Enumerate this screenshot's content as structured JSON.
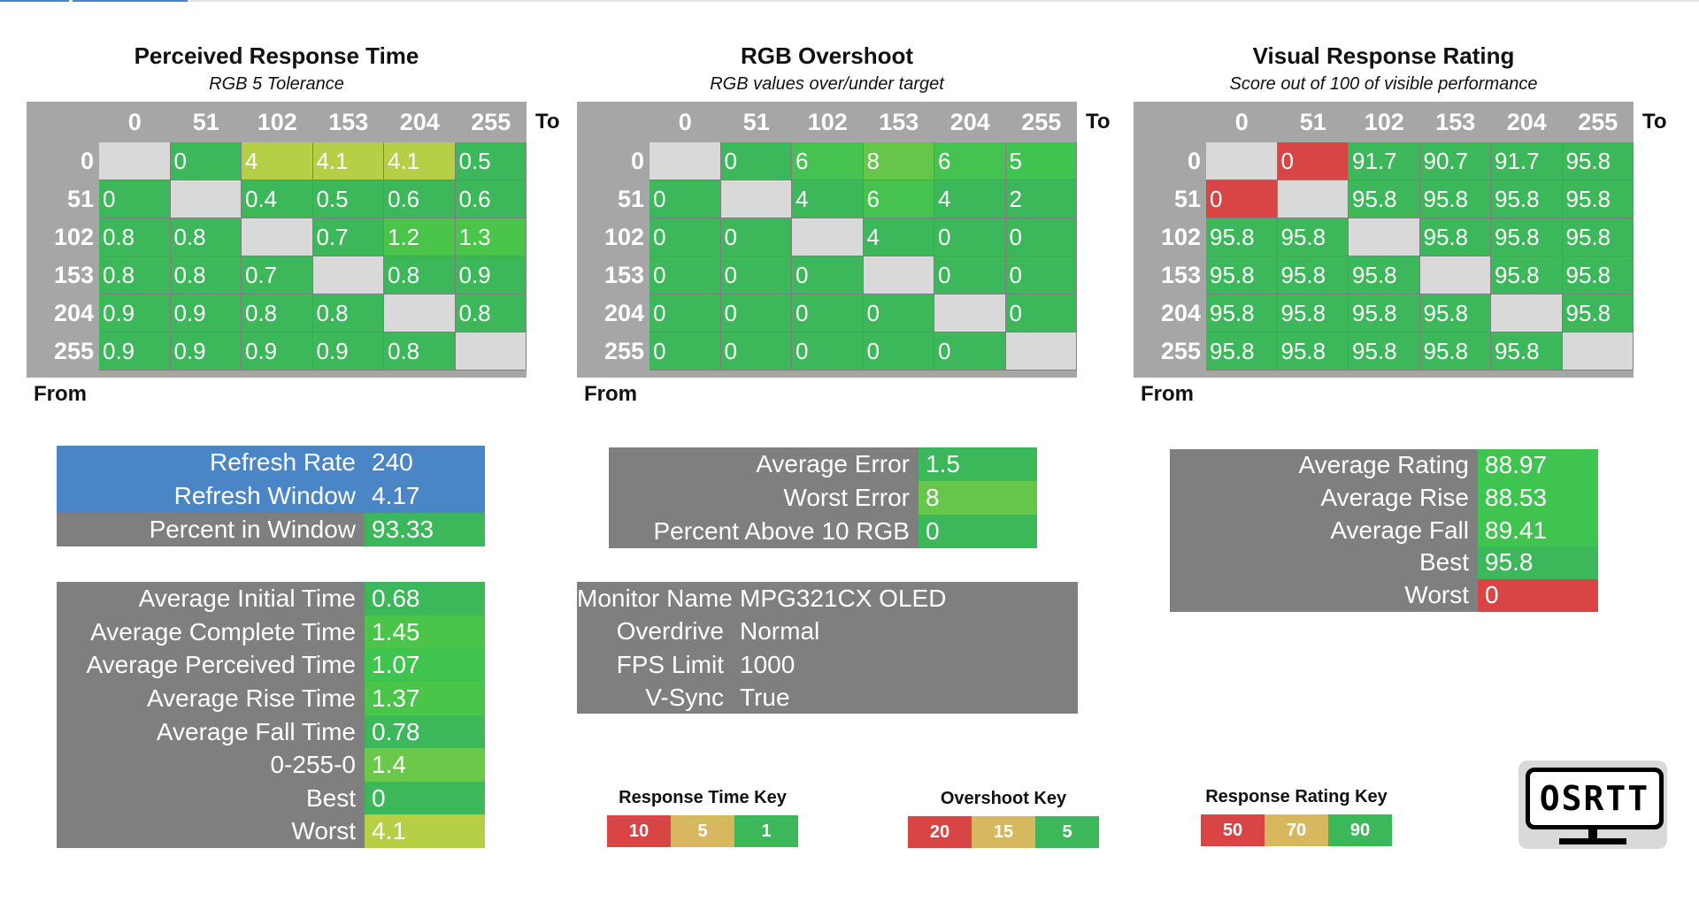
{
  "colors": {
    "green": "#3cb85a",
    "header_gray": "#a6a6a6",
    "diag_gray": "#d9d9d9",
    "stat_gray": "#7f7f7f",
    "blue": "#4a86c5",
    "red": "#d94444",
    "tan": "#d8b85f",
    "yellow_green": "#b5cf47"
  },
  "matrices": [
    {
      "title": "Perceived Response Time",
      "subtitle": "RGB 5 Tolerance",
      "to_label": "To",
      "from_label": "From",
      "columns": [
        "0",
        "51",
        "102",
        "153",
        "204",
        "255"
      ],
      "rows": [
        {
          "label": "0",
          "cells": [
            "",
            "0",
            "4",
            "4.1",
            "4.1",
            "0.5"
          ]
        },
        {
          "label": "51",
          "cells": [
            "0",
            "",
            "0.4",
            "0.5",
            "0.6",
            "0.6"
          ]
        },
        {
          "label": "102",
          "cells": [
            "0.8",
            "0.8",
            "",
            "0.7",
            "1.2",
            "1.3"
          ]
        },
        {
          "label": "153",
          "cells": [
            "0.8",
            "0.8",
            "0.7",
            "",
            "0.8",
            "0.9"
          ]
        },
        {
          "label": "204",
          "cells": [
            "0.9",
            "0.9",
            "0.8",
            "0.8",
            "",
            "0.8"
          ]
        },
        {
          "label": "255",
          "cells": [
            "0.9",
            "0.9",
            "0.9",
            "0.9",
            "0.8",
            ""
          ]
        }
      ],
      "cell_colors": [
        [
          "#d9d9d9",
          "#3cb85a",
          "#b5cf47",
          "#b5cf47",
          "#b5cf47",
          "#3cb85a"
        ],
        [
          "#3cb85a",
          "#d9d9d9",
          "#3cb85a",
          "#3cb85a",
          "#3cb85a",
          "#3cb85a"
        ],
        [
          "#3cb85a",
          "#3cb85a",
          "#d9d9d9",
          "#3cb85a",
          "#4ac54a",
          "#4ac54a"
        ],
        [
          "#3cb85a",
          "#3cb85a",
          "#3cb85a",
          "#d9d9d9",
          "#3cb85a",
          "#3cb85a"
        ],
        [
          "#3cb85a",
          "#3cb85a",
          "#3cb85a",
          "#3cb85a",
          "#d9d9d9",
          "#3cb85a"
        ],
        [
          "#3cb85a",
          "#3cb85a",
          "#3cb85a",
          "#3cb85a",
          "#3cb85a",
          "#d9d9d9"
        ]
      ]
    },
    {
      "title": "RGB Overshoot",
      "subtitle": "RGB values over/under target",
      "to_label": "To",
      "from_label": "From",
      "columns": [
        "0",
        "51",
        "102",
        "153",
        "204",
        "255"
      ],
      "rows": [
        {
          "label": "0",
          "cells": [
            "",
            "0",
            "6",
            "8",
            "6",
            "5"
          ]
        },
        {
          "label": "51",
          "cells": [
            "0",
            "",
            "4",
            "6",
            "4",
            "2"
          ]
        },
        {
          "label": "102",
          "cells": [
            "0",
            "0",
            "",
            "4",
            "0",
            "0"
          ]
        },
        {
          "label": "153",
          "cells": [
            "0",
            "0",
            "0",
            "",
            "0",
            "0"
          ]
        },
        {
          "label": "204",
          "cells": [
            "0",
            "0",
            "0",
            "0",
            "",
            "0"
          ]
        },
        {
          "label": "255",
          "cells": [
            "0",
            "0",
            "0",
            "0",
            "0",
            ""
          ]
        }
      ],
      "cell_colors": [
        [
          "#d9d9d9",
          "#3cb85a",
          "#45c250",
          "#66c64c",
          "#45c250",
          "#40c450"
        ],
        [
          "#3cb85a",
          "#d9d9d9",
          "#3cb85a",
          "#45c250",
          "#3cb85a",
          "#3cb85a"
        ],
        [
          "#3cb85a",
          "#3cb85a",
          "#d9d9d9",
          "#3cb85a",
          "#3cb85a",
          "#3cb85a"
        ],
        [
          "#3cb85a",
          "#3cb85a",
          "#3cb85a",
          "#d9d9d9",
          "#3cb85a",
          "#3cb85a"
        ],
        [
          "#3cb85a",
          "#3cb85a",
          "#3cb85a",
          "#3cb85a",
          "#d9d9d9",
          "#3cb85a"
        ],
        [
          "#3cb85a",
          "#3cb85a",
          "#3cb85a",
          "#3cb85a",
          "#3cb85a",
          "#d9d9d9"
        ]
      ]
    },
    {
      "title": "Visual Response Rating",
      "subtitle": "Score out of 100 of visible performance",
      "to_label": "To",
      "from_label": "From",
      "columns": [
        "0",
        "51",
        "102",
        "153",
        "204",
        "255"
      ],
      "rows": [
        {
          "label": "0",
          "cells": [
            "",
            "0",
            "91.7",
            "90.7",
            "91.7",
            "95.8"
          ]
        },
        {
          "label": "51",
          "cells": [
            "0",
            "",
            "95.8",
            "95.8",
            "95.8",
            "95.8"
          ]
        },
        {
          "label": "102",
          "cells": [
            "95.8",
            "95.8",
            "",
            "95.8",
            "95.8",
            "95.8"
          ]
        },
        {
          "label": "153",
          "cells": [
            "95.8",
            "95.8",
            "95.8",
            "",
            "95.8",
            "95.8"
          ]
        },
        {
          "label": "204",
          "cells": [
            "95.8",
            "95.8",
            "95.8",
            "95.8",
            "",
            "95.8"
          ]
        },
        {
          "label": "255",
          "cells": [
            "95.8",
            "95.8",
            "95.8",
            "95.8",
            "95.8",
            ""
          ]
        }
      ],
      "cell_colors": [
        [
          "#d9d9d9",
          "#d94444",
          "#3cb85a",
          "#3cb85a",
          "#3cb85a",
          "#3cb85a"
        ],
        [
          "#d94444",
          "#d9d9d9",
          "#3cb85a",
          "#3cb85a",
          "#3cb85a",
          "#3cb85a"
        ],
        [
          "#3cb85a",
          "#3cb85a",
          "#d9d9d9",
          "#3cb85a",
          "#3cb85a",
          "#3cb85a"
        ],
        [
          "#3cb85a",
          "#3cb85a",
          "#3cb85a",
          "#d9d9d9",
          "#3cb85a",
          "#3cb85a"
        ],
        [
          "#3cb85a",
          "#3cb85a",
          "#3cb85a",
          "#3cb85a",
          "#d9d9d9",
          "#3cb85a"
        ],
        [
          "#3cb85a",
          "#3cb85a",
          "#3cb85a",
          "#3cb85a",
          "#3cb85a",
          "#d9d9d9"
        ]
      ]
    }
  ],
  "refresh_table": [
    {
      "label": "Refresh Rate",
      "value": "240",
      "label_color": "#4a86c5",
      "value_color": "#4a86c5"
    },
    {
      "label": "Refresh Window",
      "value": "4.17",
      "label_color": "#4a86c5",
      "value_color": "#4a86c5"
    },
    {
      "label": "Percent in Window",
      "value": "93.33",
      "label_color": "#7f7f7f",
      "value_color": "#3cb85a"
    }
  ],
  "time_table": [
    {
      "label": "Average Initial Time",
      "value": "0.68",
      "value_color": "#3cb85a"
    },
    {
      "label": "Average Complete Time",
      "value": "1.45",
      "value_color": "#4ac54a"
    },
    {
      "label": "Average Perceived Time",
      "value": "1.07",
      "value_color": "#40c450"
    },
    {
      "label": "Average Rise Time",
      "value": "1.37",
      "value_color": "#4ac54a"
    },
    {
      "label": "Average Fall Time",
      "value": "0.78",
      "value_color": "#3cb85a"
    },
    {
      "label": "0-255-0",
      "value": "1.4",
      "value_color": "#6cc84a"
    },
    {
      "label": "Best",
      "value": "0",
      "value_color": "#3cb85a"
    },
    {
      "label": "Worst",
      "value": "4.1",
      "value_color": "#b5cf47"
    }
  ],
  "error_table": [
    {
      "label": "Average Error",
      "value": "1.5",
      "value_color": "#3cb85a"
    },
    {
      "label": "Worst Error",
      "value": "8",
      "value_color": "#66c64c"
    },
    {
      "label": "Percent Above 10 RGB",
      "value": "0",
      "value_color": "#3cb85a"
    }
  ],
  "monitor_table": [
    {
      "label": "Monitor Name",
      "value": "MPG321CX OLED"
    },
    {
      "label": "Overdrive",
      "value": "Normal"
    },
    {
      "label": "FPS Limit",
      "value": "1000"
    },
    {
      "label": "V-Sync",
      "value": "True"
    }
  ],
  "rating_table": [
    {
      "label": "Average Rating",
      "value": "88.97",
      "value_color": "#40c450"
    },
    {
      "label": "Average Rise",
      "value": "88.53",
      "value_color": "#40c450"
    },
    {
      "label": "Average Fall",
      "value": "89.41",
      "value_color": "#40c450"
    },
    {
      "label": "Best",
      "value": "95.8",
      "value_color": "#3cb85a"
    },
    {
      "label": "Worst",
      "value": "0",
      "value_color": "#d94444"
    }
  ],
  "keys": [
    {
      "title": "Response Time Key",
      "values": [
        "10",
        "5",
        "1"
      ],
      "colors": [
        "#d94444",
        "#d8b85f",
        "#3cb85a"
      ]
    },
    {
      "title": "Overshoot Key",
      "values": [
        "20",
        "15",
        "5"
      ],
      "colors": [
        "#d94444",
        "#d8b85f",
        "#3cb85a"
      ]
    },
    {
      "title": "Response Rating Key",
      "values": [
        "50",
        "70",
        "90"
      ],
      "colors": [
        "#d94444",
        "#d8b85f",
        "#3cb85a"
      ]
    }
  ],
  "logo": {
    "text": "OSRTT",
    "icon": "monitor-icon"
  }
}
